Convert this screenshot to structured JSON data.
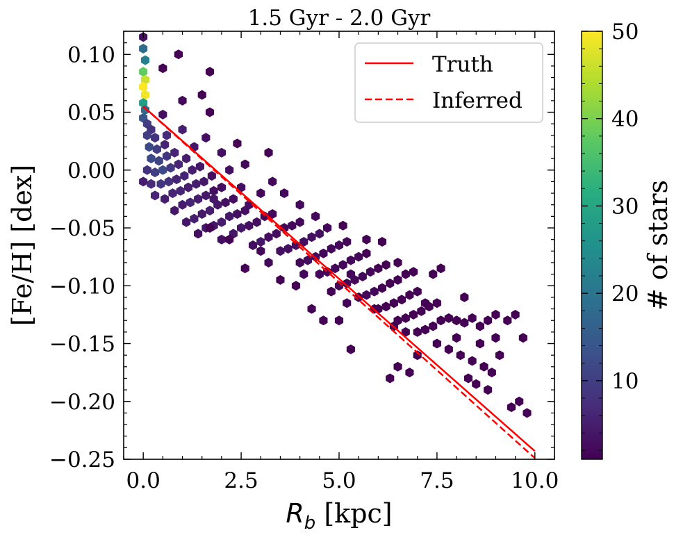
{
  "chart_data": {
    "type": "heatmap",
    "subtype": "hexbin",
    "title": "1.5 Gyr - 2.0 Gyr",
    "xlabel": {
      "symbol": "R",
      "subscript": "b",
      "unit": " [kpc]"
    },
    "ylabel": "[Fe/H] [dex]",
    "xlim": [
      -0.5,
      10.5
    ],
    "ylim": [
      -0.25,
      0.12
    ],
    "xticks": [
      0.0,
      2.5,
      5.0,
      7.5,
      10.0
    ],
    "xtick_labels": [
      "0.0",
      "2.5",
      "5.0",
      "7.5",
      "10.0"
    ],
    "yticks": [
      0.1,
      0.05,
      0.0,
      -0.05,
      -0.1,
      -0.15,
      -0.2,
      -0.25
    ],
    "ytick_labels": [
      "0.10",
      "0.05",
      "0.00",
      "−0.05",
      "−0.10",
      "−0.15",
      "−0.20",
      "−0.25"
    ],
    "legend": {
      "position": "top-right",
      "entries": [
        {
          "label": "Truth",
          "style": "solid",
          "color": "#ff0000"
        },
        {
          "label": "Inferred",
          "style": "dashed",
          "color": "#ff0000"
        }
      ]
    },
    "lines": [
      {
        "name": "Truth",
        "style": "solid",
        "x": [
          0.0,
          10.0
        ],
        "y": [
          0.055,
          -0.243
        ]
      },
      {
        "name": "Inferred",
        "style": "dashed",
        "x": [
          0.0,
          10.0
        ],
        "y": [
          0.055,
          -0.249
        ]
      }
    ],
    "colorbar": {
      "label": "# of stars",
      "colormap": "viridis",
      "range": [
        1,
        50
      ],
      "ticks": [
        10,
        20,
        30,
        40,
        50
      ],
      "tick_labels": [
        "10",
        "20",
        "30",
        "40",
        "50"
      ]
    },
    "hexbins": [
      [
        0.0,
        0.115,
        3
      ],
      [
        0.0,
        0.105,
        18
      ],
      [
        0.05,
        0.095,
        22
      ],
      [
        0.0,
        0.085,
        38
      ],
      [
        0.05,
        0.078,
        46
      ],
      [
        0.0,
        0.072,
        50
      ],
      [
        0.05,
        0.065,
        49
      ],
      [
        0.0,
        0.058,
        28
      ],
      [
        0.05,
        0.052,
        18
      ],
      [
        0.0,
        0.045,
        14
      ],
      [
        0.1,
        0.04,
        10
      ],
      [
        0.2,
        0.035,
        8
      ],
      [
        0.1,
        0.03,
        10
      ],
      [
        0.3,
        0.028,
        8
      ],
      [
        0.15,
        0.02,
        12
      ],
      [
        0.35,
        0.018,
        10
      ],
      [
        0.55,
        0.022,
        6
      ],
      [
        0.2,
        0.01,
        12
      ],
      [
        0.4,
        0.008,
        11
      ],
      [
        0.6,
        0.012,
        9
      ],
      [
        0.8,
        0.015,
        6
      ],
      [
        0.1,
        0.0,
        8
      ],
      [
        0.3,
        -0.002,
        10
      ],
      [
        0.5,
        0.0,
        12
      ],
      [
        0.7,
        0.002,
        9
      ],
      [
        0.9,
        0.005,
        6
      ],
      [
        1.1,
        0.01,
        5
      ],
      [
        0.0,
        -0.01,
        5
      ],
      [
        0.2,
        -0.012,
        7
      ],
      [
        0.45,
        -0.012,
        9
      ],
      [
        0.65,
        -0.01,
        8
      ],
      [
        0.85,
        -0.008,
        6
      ],
      [
        1.05,
        -0.005,
        6
      ],
      [
        1.25,
        0.0,
        5
      ],
      [
        1.45,
        0.003,
        4
      ],
      [
        0.3,
        -0.022,
        6
      ],
      [
        0.55,
        -0.025,
        5
      ],
      [
        0.75,
        -0.02,
        6
      ],
      [
        0.95,
        -0.018,
        6
      ],
      [
        1.15,
        -0.015,
        5
      ],
      [
        1.35,
        -0.012,
        5
      ],
      [
        1.55,
        -0.01,
        4
      ],
      [
        1.75,
        -0.005,
        3
      ],
      [
        0.8,
        -0.035,
        4
      ],
      [
        1.0,
        -0.03,
        5
      ],
      [
        1.2,
        -0.028,
        6
      ],
      [
        1.4,
        -0.025,
        5
      ],
      [
        1.6,
        -0.022,
        4
      ],
      [
        1.8,
        -0.018,
        3
      ],
      [
        2.0,
        -0.015,
        3
      ],
      [
        1.1,
        -0.045,
        4
      ],
      [
        1.3,
        -0.042,
        5
      ],
      [
        1.5,
        -0.038,
        4
      ],
      [
        1.7,
        -0.035,
        5
      ],
      [
        1.9,
        -0.03,
        4
      ],
      [
        2.1,
        -0.028,
        3
      ],
      [
        2.3,
        -0.025,
        3
      ],
      [
        1.4,
        -0.055,
        3
      ],
      [
        1.6,
        -0.05,
        4
      ],
      [
        1.8,
        -0.048,
        4
      ],
      [
        2.0,
        -0.045,
        5
      ],
      [
        2.2,
        -0.04,
        4
      ],
      [
        2.4,
        -0.038,
        3
      ],
      [
        2.6,
        -0.035,
        3
      ],
      [
        2.0,
        -0.06,
        3
      ],
      [
        2.3,
        -0.055,
        4
      ],
      [
        2.5,
        -0.05,
        4
      ],
      [
        2.7,
        -0.048,
        3
      ],
      [
        2.9,
        -0.045,
        3
      ],
      [
        3.1,
        -0.04,
        2
      ],
      [
        3.3,
        -0.038,
        2
      ],
      [
        2.8,
        -0.065,
        3
      ],
      [
        3.0,
        -0.062,
        4
      ],
      [
        3.2,
        -0.058,
        3
      ],
      [
        3.4,
        -0.055,
        3
      ],
      [
        3.6,
        -0.05,
        2
      ],
      [
        3.8,
        -0.048,
        2
      ],
      [
        4.0,
        -0.045,
        2
      ],
      [
        3.5,
        -0.07,
        3
      ],
      [
        3.7,
        -0.068,
        3
      ],
      [
        3.9,
        -0.065,
        3
      ],
      [
        4.1,
        -0.062,
        3
      ],
      [
        4.3,
        -0.058,
        3
      ],
      [
        4.5,
        -0.055,
        3
      ],
      [
        4.7,
        -0.05,
        2
      ],
      [
        4.0,
        -0.08,
        2
      ],
      [
        4.2,
        -0.078,
        3
      ],
      [
        4.4,
        -0.075,
        3
      ],
      [
        4.6,
        -0.072,
        2
      ],
      [
        4.8,
        -0.068,
        2
      ],
      [
        5.0,
        -0.065,
        2
      ],
      [
        5.2,
        -0.062,
        2
      ],
      [
        4.5,
        -0.09,
        2
      ],
      [
        4.7,
        -0.088,
        2
      ],
      [
        4.9,
        -0.085,
        2
      ],
      [
        5.1,
        -0.082,
        2
      ],
      [
        5.3,
        -0.078,
        2
      ],
      [
        5.5,
        -0.075,
        2
      ],
      [
        5.7,
        -0.072,
        1
      ],
      [
        5.0,
        -0.1,
        2
      ],
      [
        5.2,
        -0.098,
        2
      ],
      [
        5.4,
        -0.095,
        2
      ],
      [
        5.6,
        -0.092,
        2
      ],
      [
        5.8,
        -0.088,
        2
      ],
      [
        6.0,
        -0.085,
        1
      ],
      [
        6.2,
        -0.082,
        1
      ],
      [
        5.5,
        -0.11,
        1
      ],
      [
        5.7,
        -0.108,
        2
      ],
      [
        5.9,
        -0.105,
        2
      ],
      [
        6.1,
        -0.102,
        1
      ],
      [
        6.3,
        -0.098,
        1
      ],
      [
        6.5,
        -0.095,
        1
      ],
      [
        6.7,
        -0.09,
        1
      ],
      [
        6.0,
        -0.12,
        1
      ],
      [
        6.2,
        -0.118,
        1
      ],
      [
        6.4,
        -0.115,
        1
      ],
      [
        6.6,
        -0.112,
        1
      ],
      [
        6.8,
        -0.108,
        1
      ],
      [
        7.0,
        -0.105,
        1
      ],
      [
        6.5,
        -0.13,
        1
      ],
      [
        6.7,
        -0.128,
        1
      ],
      [
        6.9,
        -0.125,
        1
      ],
      [
        7.1,
        -0.122,
        1
      ],
      [
        7.3,
        -0.118,
        1
      ],
      [
        7.5,
        -0.115,
        1
      ],
      [
        7.0,
        -0.14,
        1
      ],
      [
        7.2,
        -0.138,
        1
      ],
      [
        7.4,
        -0.135,
        1
      ],
      [
        7.6,
        -0.13,
        1
      ],
      [
        7.8,
        -0.128,
        1
      ],
      [
        8.0,
        -0.13,
        1
      ],
      [
        8.2,
        -0.132,
        1
      ],
      [
        8.4,
        -0.128,
        1
      ],
      [
        8.6,
        -0.135,
        1
      ],
      [
        8.8,
        -0.13,
        1
      ],
      [
        9.0,
        -0.125,
        1
      ],
      [
        9.3,
        -0.13,
        1
      ],
      [
        9.5,
        -0.125,
        1
      ],
      [
        7.5,
        -0.15,
        1
      ],
      [
        7.8,
        -0.155,
        1
      ],
      [
        8.1,
        -0.16,
        1
      ],
      [
        8.4,
        -0.165,
        1
      ],
      [
        8.7,
        -0.17,
        1
      ],
      [
        8.9,
        -0.175,
        1
      ],
      [
        9.1,
        -0.16,
        1
      ],
      [
        8.3,
        -0.18,
        1
      ],
      [
        8.5,
        -0.185,
        1
      ],
      [
        8.8,
        -0.19,
        1
      ],
      [
        6.5,
        -0.17,
        1
      ],
      [
        6.8,
        -0.175,
        1
      ],
      [
        7.0,
        -0.16,
        1
      ],
      [
        6.3,
        -0.18,
        1
      ],
      [
        9.7,
        -0.145,
        1
      ],
      [
        9.0,
        -0.145,
        1
      ],
      [
        8.6,
        -0.15,
        1
      ],
      [
        9.4,
        -0.205,
        1
      ],
      [
        9.6,
        -0.2,
        1
      ],
      [
        9.8,
        -0.21,
        1
      ],
      [
        7.4,
        -0.09,
        1
      ],
      [
        7.6,
        -0.085,
        1
      ],
      [
        4.3,
        -0.12,
        1
      ],
      [
        4.6,
        -0.13,
        1
      ],
      [
        5.2,
        -0.115,
        1
      ],
      [
        3.5,
        -0.095,
        1
      ],
      [
        2.2,
        -0.06,
        1
      ],
      [
        1.7,
        -0.05,
        1
      ],
      [
        0.9,
        0.1,
        1
      ],
      [
        1.5,
        0.065,
        1
      ],
      [
        1.7,
        0.085,
        1
      ],
      [
        0.5,
        0.088,
        1
      ],
      [
        0.5,
        0.048,
        3
      ],
      [
        1.7,
        0.05,
        1
      ],
      [
        2.4,
        0.023,
        1
      ],
      [
        3.2,
        0.015,
        1
      ],
      [
        2.6,
        0.005,
        2
      ],
      [
        3.0,
        -0.02,
        2
      ],
      [
        3.3,
        -0.01,
        2
      ],
      [
        3.6,
        -0.02,
        2
      ],
      [
        4.0,
        -0.03,
        2
      ],
      [
        4.4,
        -0.04,
        2
      ],
      [
        5.1,
        -0.048,
        1
      ],
      [
        5.7,
        -0.06,
        1
      ],
      [
        6.1,
        -0.062,
        1
      ],
      [
        6.5,
        -0.08,
        1
      ],
      [
        6.9,
        -0.088,
        1
      ],
      [
        5.3,
        -0.155,
        1
      ],
      [
        5.0,
        -0.13,
        1
      ],
      [
        1.0,
        0.06,
        2
      ],
      [
        0.6,
        0.03,
        7
      ],
      [
        1.0,
        0.035,
        5
      ],
      [
        1.3,
        0.02,
        4
      ],
      [
        1.6,
        0.028,
        3
      ],
      [
        2.0,
        0.015,
        3
      ],
      [
        2.2,
        0.0,
        3
      ],
      [
        1.8,
        -0.025,
        4
      ],
      [
        2.5,
        -0.015,
        3
      ],
      [
        2.7,
        -0.03,
        3
      ],
      [
        3.2,
        -0.08,
        2
      ],
      [
        2.6,
        -0.085,
        1
      ],
      [
        3.0,
        -0.07,
        2
      ],
      [
        3.9,
        -0.1,
        1
      ],
      [
        4.1,
        -0.09,
        2
      ],
      [
        4.8,
        -0.105,
        1
      ],
      [
        5.3,
        -0.09,
        2
      ],
      [
        5.9,
        -0.12,
        1
      ],
      [
        6.4,
        -0.135,
        1
      ],
      [
        6.7,
        -0.14,
        1
      ],
      [
        7.2,
        -0.115,
        1
      ],
      [
        8.0,
        -0.145,
        1
      ],
      [
        8.2,
        -0.11,
        1
      ]
    ]
  }
}
